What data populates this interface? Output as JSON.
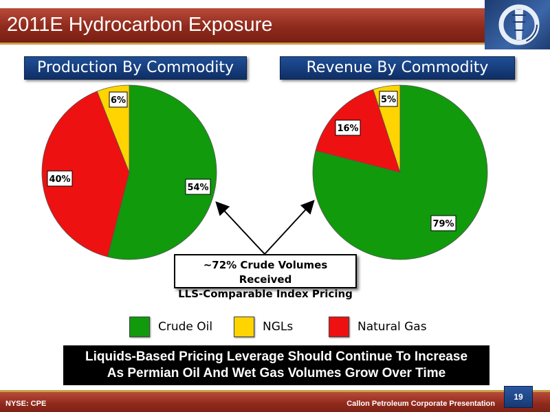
{
  "title": "2011E Hydrocarbon Exposure",
  "colors": {
    "crude_oil": "#119a0c",
    "ngls": "#ffd400",
    "natural_gas": "#ee1111",
    "accent_red": "#8e2a1c",
    "accent_blue": "#1f4f96"
  },
  "logo_icon": "callon-logo-icon",
  "chart_data": [
    {
      "type": "pie",
      "title": "Production By Commodity",
      "categories": [
        "Crude Oil",
        "NGLs",
        "Natural Gas"
      ],
      "values": [
        54,
        6,
        40
      ],
      "labels": [
        "54%",
        "6%",
        "40%"
      ]
    },
    {
      "type": "pie",
      "title": "Revenue By Commodity",
      "categories": [
        "Crude Oil",
        "NGLs",
        "Natural Gas"
      ],
      "values": [
        79,
        5,
        16
      ],
      "labels": [
        "79%",
        "5%",
        "16%"
      ]
    }
  ],
  "legend": [
    {
      "label": "Crude Oil"
    },
    {
      "label": "NGLs"
    },
    {
      "label": "Natural Gas"
    }
  ],
  "callout": {
    "line1": "~72% Crude Volumes Received",
    "line2": "LLS-Comparable Index Pricing"
  },
  "banner": {
    "line1": "Liquids-Based Pricing Leverage Should Continue To Increase",
    "line2": "As Permian Oil And Wet Gas Volumes Grow Over Time"
  },
  "footer": {
    "ticker": "NYSE: CPE",
    "presentation": "Callon Petroleum Corporate Presentation",
    "page": "19"
  }
}
